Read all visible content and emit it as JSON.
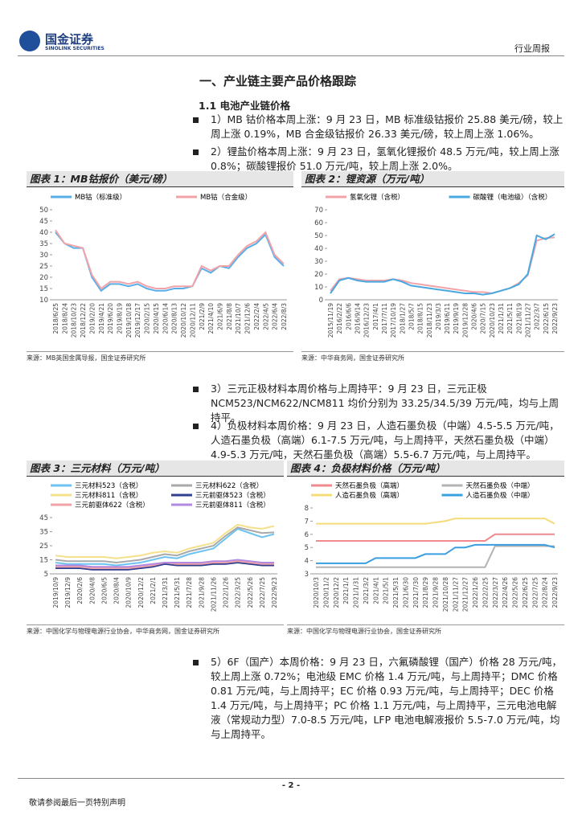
{
  "header": {
    "logo_cn": "国金证券",
    "logo_en": "SINOLINK SECURITIES",
    "report_type": "行业周报"
  },
  "section_title": "一、产业链主要产品价格跟踪",
  "subsection_title": "1.1 电池产业链价格",
  "paragraphs": [
    "1）MB 钴价格本周上涨：9 月 23 日，MB 标准级钴报价 25.88 美元/磅，较上周上涨 0.19%，MB 合金级钴报价 26.33 美元/磅，较上周上涨 1.06%。",
    "2）锂盐价格本周上涨：9 月 23 日，氢氧化锂报价 48.5 万元/吨，较上周上涨 0.8%；碳酸锂报价 51.0 万元/吨，较上周上涨 2.0%。",
    "3）三元正极材料本周价格与上周持平：9 月 23 日，三元正极 NCM523/NCM622/NCM811 均价分别为 33.25/34.5/39 万元/吨，均与上周持平。",
    "4）负极材料本周价格：9 月 23 日，人造石墨负极（中端）4.5-5.5 万元/吨，人造石墨负极（高端）6.1-7.5 万元/吨，与上周持平，天然石墨负极（中端）4.9-5.3 万元/吨，天然石墨负极（高端）5.5-6.7 万元/吨，与上周持平。",
    "5）6F（国产）本周价格：9 月 23 日，六氟磷酸锂（国产）价格 28 万元/吨，较上周上涨 0.72%；电池级 EMC 价格 1.4 万元/吨，与上周持平；DMC 价格 0.81 万元/吨，与上周持平；EC 价格 0.93 万元/吨，与上周持平；DEC 价格 1.4 万元/吨，与上周持平；PC 价格 1.1 万元/吨，与上周持平，三元电池电解液（常规动力型）7.0-8.5 万元/吨，LFP 电池电解液报价 5.5-7.0 万元/吨，均与上周持平。"
  ],
  "footer": {
    "page": "- 2 -",
    "disclaimer": "敬请参阅最后一页特别声明"
  },
  "chart_data": [
    {
      "type": "line",
      "title": "图表 1：MB钴报价（美元/磅）",
      "source": "来源：MB英国金属导报，国金证券研究所",
      "categories": [
        "2018/6/25",
        "2018/8/24",
        "2018/10/23",
        "2018/12/22",
        "2019/2/20",
        "2019/4/21",
        "2019/6/20",
        "2019/8/19",
        "2019/10/18",
        "2019/12/17",
        "2020/2/15",
        "2020/4/15",
        "2020/6/14",
        "2020/8/13",
        "2020/10/12",
        "2020/12/11",
        "2021/2/9",
        "2021/4/10",
        "2021/6/9",
        "2021/8/8",
        "2021/10/7",
        "2021/12/6",
        "2022/2/4",
        "2022/4/5",
        "2022/6/4",
        "2022/8/3"
      ],
      "series": [
        {
          "name": "MB钴（标准级）",
          "color": "#5aaee8",
          "values": [
            40,
            35,
            33,
            33,
            20,
            14,
            17,
            17,
            16,
            17,
            15,
            14,
            14,
            15,
            15,
            16,
            24,
            22,
            25,
            24,
            29,
            33,
            35,
            39,
            29,
            25
          ]
        },
        {
          "name": "MB钴（合金级）",
          "color": "#f2a3a8",
          "values": [
            41,
            35,
            34,
            33,
            21,
            15,
            18,
            18,
            17,
            18,
            16,
            15,
            15,
            16,
            16,
            16,
            25,
            23,
            25,
            25,
            30,
            34,
            36,
            40,
            30,
            26
          ]
        }
      ],
      "ylim": [
        10,
        50
      ],
      "yticks": [
        10,
        15,
        20,
        25,
        30,
        35,
        40,
        45,
        50
      ]
    },
    {
      "type": "line",
      "title": "图表 2：锂资源（万元/吨）",
      "source": "来源：中华商务网，国金证券研究所",
      "categories": [
        "2015/11/19",
        "2016/2/22",
        "2016/6/6",
        "2016/9/14",
        "2016/12/23",
        "2017/4/1",
        "2017/7/11",
        "2017/10/19",
        "2018/1/27",
        "2018/5/7",
        "2018/8/15",
        "2018/11/23",
        "2019/3/3",
        "2019/6/11",
        "2019/9/19",
        "2019/12/28",
        "2020/4/6",
        "2020/7/15",
        "2020/10/23",
        "2021/1/31",
        "2021/5/11",
        "2021/8/19",
        "2021/11/27",
        "2022/3/7",
        "2022/6/15",
        "2022/9/23"
      ],
      "series": [
        {
          "name": "氢氧化锂（含税）",
          "color": "#f2a3a8",
          "values": [
            7,
            16,
            17,
            16,
            15,
            15,
            15,
            16,
            15,
            13,
            12,
            11,
            10,
            9,
            8,
            7,
            6,
            6,
            5,
            7,
            9,
            13,
            19,
            46,
            48,
            48.5
          ]
        },
        {
          "name": "碳酸锂（电池级）（含税）",
          "color": "#4aa8e0",
          "values": [
            5,
            15,
            17,
            15,
            14,
            14,
            14,
            16,
            14,
            11,
            10,
            9,
            8,
            7,
            6,
            5,
            5,
            4,
            5,
            7,
            9,
            12,
            20,
            50,
            47,
            51
          ]
        }
      ],
      "ylim": [
        0,
        70
      ],
      "yticks": [
        0,
        10,
        20,
        30,
        40,
        50,
        60,
        70
      ]
    },
    {
      "type": "line",
      "title": "图表 3：三元材料（万元/吨）",
      "source": "来源：中国化学与物理电源行业协会，中华商务网，国金证券研究所",
      "categories": [
        "2019/10/9",
        "2019/12/9",
        "2020/2/6",
        "2020/4/8",
        "2020/6/5",
        "2020/8/4",
        "2020/10/9",
        "2020/12/2",
        "2021/2/1",
        "2021/3/31",
        "2021/5/31",
        "2021/7/28",
        "2021/9/28",
        "2021/11/26",
        "2022/1/26",
        "2022/3/25",
        "2022/5/26",
        "2022/7/25",
        "2022/9/23"
      ],
      "series": [
        {
          "name": "三元材料523（含税）",
          "color": "#6cc3f2",
          "values": [
            13,
            12,
            12,
            12,
            12,
            11,
            12,
            13,
            15,
            17,
            16,
            19,
            21,
            23,
            30,
            37,
            34,
            31,
            33.25
          ]
        },
        {
          "name": "三元材料622（含税）",
          "color": "#a9a9a9",
          "values": [
            15,
            14,
            14,
            14,
            14,
            13,
            14,
            15,
            17,
            19,
            18,
            21,
            23,
            25,
            32,
            38,
            36,
            34,
            34.5
          ]
        },
        {
          "name": "三元材料811（含税）",
          "color": "#f5e08c",
          "values": [
            18,
            17,
            17,
            17,
            17,
            16,
            17,
            18,
            20,
            21,
            20,
            23,
            25,
            27,
            34,
            40,
            38,
            37,
            39
          ]
        },
        {
          "name": "三元前驱体523（含税）",
          "color": "#2f3f8f",
          "values": [
            9,
            9,
            9,
            8,
            8,
            8,
            8,
            9,
            10,
            12,
            11,
            11,
            11,
            12,
            12,
            13,
            12,
            11,
            11
          ]
        },
        {
          "name": "三元前驱体622（含税）",
          "color": "#f2a3a8",
          "values": [
            10,
            10,
            10,
            9,
            9,
            9,
            9,
            10,
            11,
            13,
            12,
            12,
            12,
            13,
            13,
            14,
            13,
            12,
            12
          ]
        },
        {
          "name": "三元前驱体811（含税）",
          "color": "#b28ae0",
          "values": [
            11,
            11,
            11,
            10,
            10,
            10,
            10,
            11,
            12,
            13,
            13,
            13,
            13,
            14,
            14,
            15,
            14,
            13,
            13
          ]
        }
      ],
      "ylim": [
        5,
        45
      ],
      "yticks": [
        5,
        15,
        25,
        35,
        45
      ]
    },
    {
      "type": "line",
      "title": "图表 4：负极材料价格（万元/吨）",
      "source": "来源：中国化学与物理电源行业协会，国金证券研究所",
      "categories": [
        "2020/10/3",
        "2020/11/2",
        "2020/12/2",
        "2021/1/1",
        "2021/1/31",
        "2021/3/2",
        "2021/4/1",
        "2021/5/1",
        "2021/5/31",
        "2021/6/30",
        "2021/7/30",
        "2021/8/29",
        "2021/9/28",
        "2021/10/28",
        "2021/11/27",
        "2021/12/27",
        "2022/1/26",
        "2022/2/25",
        "2022/3/27",
        "2022/4/26",
        "2022/5/26",
        "2022/6/25",
        "2022/7/25",
        "2022/8/24",
        "2022/9/23"
      ],
      "series": [
        {
          "name": "天然石墨负极（高端）",
          "color": "#f08a8e",
          "values": [
            5.5,
            5.5,
            5.5,
            5.5,
            5.5,
            5.5,
            5.5,
            5.5,
            5.5,
            5.5,
            5.5,
            5.5,
            5.5,
            5.5,
            5.5,
            5.5,
            5.5,
            5.5,
            6,
            6,
            6,
            6,
            6,
            6,
            6
          ]
        },
        {
          "name": "天然石墨负极（中端）",
          "color": "#b3b3b3",
          "values": [
            3.5,
            3.5,
            3.5,
            3.5,
            3.5,
            3.5,
            3.5,
            3.5,
            3.5,
            3.5,
            3.5,
            3.5,
            3.5,
            3.5,
            3.5,
            3.5,
            3.5,
            3.5,
            5.1,
            5.1,
            5.1,
            5.1,
            5.1,
            5.1,
            5.1
          ]
        },
        {
          "name": "人造石墨负极（高端）",
          "color": "#f5dc78",
          "values": [
            6.8,
            6.8,
            6.8,
            6.8,
            6.8,
            6.8,
            6.8,
            6.8,
            6.8,
            6.8,
            6.8,
            6.8,
            6.9,
            7,
            7.2,
            7.2,
            7.2,
            7.2,
            7.2,
            7.2,
            7.2,
            7.2,
            7.2,
            7.2,
            6.8
          ]
        },
        {
          "name": "人造石墨负极（中端）",
          "color": "#3a9fe0",
          "values": [
            3.8,
            3.8,
            3.8,
            3.8,
            3.8,
            3.8,
            4.2,
            4.2,
            4.2,
            4.2,
            4.2,
            4.5,
            4.5,
            4.5,
            5,
            5,
            5.2,
            5.2,
            5.2,
            5.2,
            5.2,
            5.2,
            5.2,
            5.2,
            5
          ]
        }
      ],
      "ylim": [
        3,
        8
      ],
      "yticks": [
        3,
        4,
        5,
        6,
        7,
        8
      ]
    }
  ]
}
